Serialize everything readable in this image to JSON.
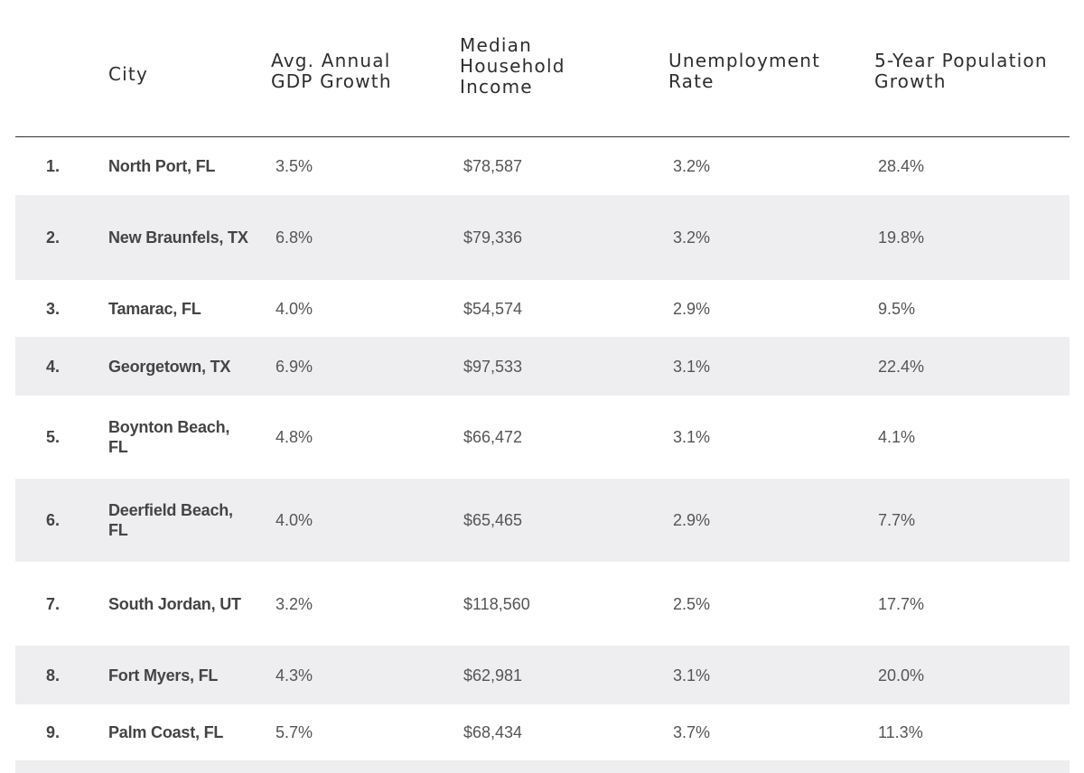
{
  "table": {
    "headers": {
      "city": "City",
      "gdp": "Avg. Annual\nGDP Growth",
      "income": "Median\nHousehold\nIncome",
      "unemployment": "Unemployment\nRate",
      "population": "5-Year Population\nGrowth"
    },
    "rows": [
      {
        "rank": "1.",
        "city": "North Port, FL",
        "gdp": "3.5%",
        "income": "$78,587",
        "unemployment": "3.2%",
        "population": "28.4%"
      },
      {
        "rank": "2.",
        "city": "New Braunfels, TX",
        "gdp": "6.8%",
        "income": "$79,336",
        "unemployment": "3.2%",
        "population": "19.8%"
      },
      {
        "rank": "3.",
        "city": "Tamarac, FL",
        "gdp": "4.0%",
        "income": "$54,574",
        "unemployment": "2.9%",
        "population": "9.5%"
      },
      {
        "rank": "4.",
        "city": "Georgetown, TX",
        "gdp": "6.9%",
        "income": "$97,533",
        "unemployment": "3.1%",
        "population": "22.4%"
      },
      {
        "rank": "5.",
        "city": "Boynton Beach, FL",
        "gdp": "4.8%",
        "income": "$66,472",
        "unemployment": "3.1%",
        "population": "4.1%"
      },
      {
        "rank": "6.",
        "city": "Deerfield Beach, FL",
        "gdp": "4.0%",
        "income": "$65,465",
        "unemployment": "2.9%",
        "population": "7.7%"
      },
      {
        "rank": "7.",
        "city": "South Jordan, UT",
        "gdp": "3.2%",
        "income": "$118,560",
        "unemployment": "2.5%",
        "population": "17.7%"
      },
      {
        "rank": "8.",
        "city": "Fort Myers, FL",
        "gdp": "4.3%",
        "income": "$62,981",
        "unemployment": "3.1%",
        "population": "20.0%"
      },
      {
        "rank": "9.",
        "city": "Palm Coast, FL",
        "gdp": "5.7%",
        "income": "$68,434",
        "unemployment": "3.7%",
        "population": "11.3%"
      }
    ]
  },
  "colors": {
    "header_text": "#2e2e2e",
    "body_text": "#555555",
    "shaded_row": "#eeeef0",
    "rule": "#333333"
  }
}
